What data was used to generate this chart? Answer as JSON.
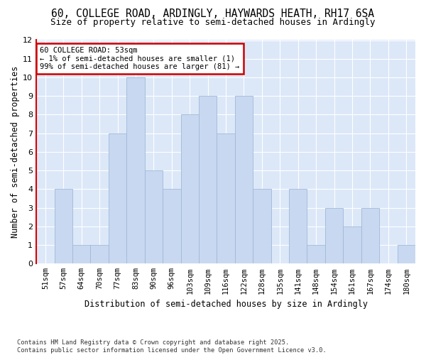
{
  "title1": "60, COLLEGE ROAD, ARDINGLY, HAYWARDS HEATH, RH17 6SA",
  "title2": "Size of property relative to semi-detached houses in Ardingly",
  "xlabel": "Distribution of semi-detached houses by size in Ardingly",
  "ylabel": "Number of semi-detached properties",
  "categories": [
    "51sqm",
    "57sqm",
    "64sqm",
    "70sqm",
    "77sqm",
    "83sqm",
    "90sqm",
    "96sqm",
    "103sqm",
    "109sqm",
    "116sqm",
    "122sqm",
    "128sqm",
    "135sqm",
    "141sqm",
    "148sqm",
    "154sqm",
    "161sqm",
    "167sqm",
    "174sqm",
    "180sqm"
  ],
  "values": [
    0,
    4,
    1,
    1,
    7,
    10,
    5,
    4,
    8,
    9,
    7,
    9,
    4,
    0,
    4,
    1,
    3,
    2,
    3,
    0,
    1
  ],
  "bar_color": "#c8d8f0",
  "bar_edge_color": "#a0b8d8",
  "property_label": "60 COLLEGE ROAD: 53sqm",
  "pct_smaller": 1,
  "pct_larger": 99,
  "count_smaller": 1,
  "count_larger": 81,
  "annotation_box_edge": "#cc0000",
  "ylim": [
    0,
    12
  ],
  "yticks": [
    0,
    1,
    2,
    3,
    4,
    5,
    6,
    7,
    8,
    9,
    10,
    11,
    12
  ],
  "footer1": "Contains HM Land Registry data © Crown copyright and database right 2025.",
  "footer2": "Contains public sector information licensed under the Open Government Licence v3.0.",
  "fig_bg": "#ffffff",
  "plot_bg": "#dce8f8",
  "grid_color": "#ffffff"
}
